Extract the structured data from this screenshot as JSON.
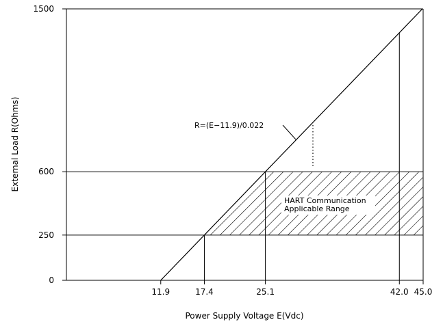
{
  "chart_data": {
    "type": "line",
    "xlabel": "Power Supply Voltage E(Vdc)",
    "ylabel": "External Load R(Ohms)",
    "xlim": [
      0,
      45.0
    ],
    "ylim": [
      0,
      1500
    ],
    "x_ticks": [
      "11.9",
      "17.4",
      "25.1",
      "42.0",
      "45.0"
    ],
    "y_ticks": [
      "0",
      "250",
      "600",
      "1500"
    ],
    "series": [
      {
        "x": [
          11.9,
          45.0
        ],
        "y": [
          0,
          1504.5
        ]
      }
    ],
    "equation_label": "R=(E−11.9)/0.022",
    "region_label_line1": "HART Communication",
    "region_label_line2": "Applicable Range",
    "hatched_region": {
      "r_min": 250,
      "r_max": 600,
      "e_min_at_r_min": 17.4,
      "e_min_at_r_max": 25.1,
      "e_max": 45.0
    },
    "vertical_guides": [
      17.4,
      25.1,
      42.0
    ],
    "grid": false,
    "legend": "none"
  },
  "colors": {
    "line": "#000000",
    "background": "#ffffff"
  }
}
